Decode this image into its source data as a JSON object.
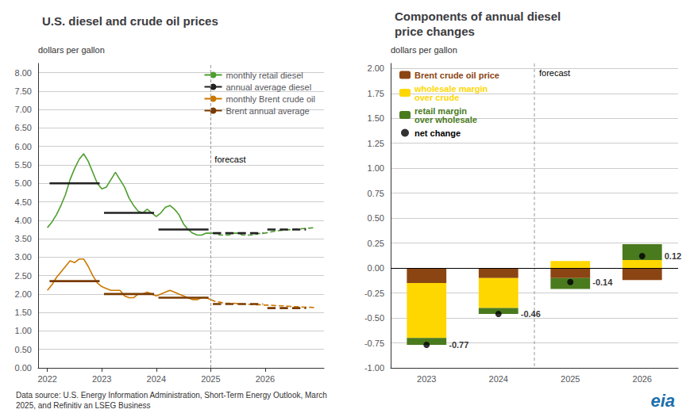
{
  "chart_data": [
    {
      "type": "line",
      "title": "U.S. diesel and crude oil prices",
      "ylabel": "dollars per gallon",
      "x": [
        2022.0,
        2022.0833,
        2022.1667,
        2022.25,
        2022.3334,
        2022.4167,
        2022.5,
        2022.5834,
        2022.6667,
        2022.7501,
        2022.8334,
        2022.9167,
        2023.0001,
        2023.0834,
        2023.1667,
        2023.2501,
        2023.3334,
        2023.4168,
        2023.5001,
        2023.5834,
        2023.6668,
        2023.7501,
        2023.8335,
        2023.9168,
        2024.0001,
        2024.0835,
        2024.1668,
        2024.2502,
        2024.3335,
        2024.4168,
        2024.5002,
        2024.5835,
        2024.6668,
        2024.7502,
        2024.8335,
        2024.9169,
        2025.0002,
        2025.0835,
        2025.1669,
        2025.2502,
        2025.3336,
        2025.4169,
        2025.5002,
        2025.5836,
        2025.6669,
        2025.7503,
        2025.8336,
        2025.9169,
        2026.0003,
        2026.0836,
        2026.1669,
        2026.2503,
        2026.3336,
        2026.417,
        2026.5003,
        2026.5836,
        2026.667,
        2026.7503,
        2026.8337,
        2026.917
      ],
      "xlim": [
        2021.83,
        2027.08
      ],
      "xticks": [
        2022,
        2023,
        2024,
        2025,
        2026
      ],
      "ylim": [
        0.0,
        8.25
      ],
      "yticks": [
        {
          "value": 0.0,
          "label": "0.00"
        },
        {
          "value": 0.5,
          "label": "0.50"
        },
        {
          "value": 1.0,
          "label": "1.00"
        },
        {
          "value": 1.5,
          "label": "1.50"
        },
        {
          "value": 2.0,
          "label": "2.00"
        },
        {
          "value": 2.5,
          "label": "2.50"
        },
        {
          "value": 3.0,
          "label": "3.00"
        },
        {
          "value": 3.5,
          "label": "3.50"
        },
        {
          "value": 4.0,
          "label": "4.00"
        },
        {
          "value": 4.5,
          "label": "4.50"
        },
        {
          "value": 5.0,
          "label": "5.00"
        },
        {
          "value": 5.5,
          "label": "5.50"
        },
        {
          "value": 6.0,
          "label": "6.00"
        },
        {
          "value": 6.5,
          "label": "6.50"
        },
        {
          "value": 7.0,
          "label": "7.00"
        },
        {
          "value": 7.5,
          "label": "7.50"
        },
        {
          "value": 8.0,
          "label": "8.00"
        }
      ],
      "grid": true,
      "legend": "upper right",
      "series": [
        {
          "name": "monthly retail diesel",
          "color": "#4d9e2f",
          "values": [
            3.8,
            3.95,
            4.15,
            4.4,
            4.7,
            5.1,
            5.4,
            5.65,
            5.8,
            5.6,
            5.3,
            5.0,
            4.85,
            4.9,
            5.1,
            5.3,
            5.1,
            4.9,
            4.6,
            4.4,
            4.25,
            4.2,
            4.3,
            4.2,
            4.1,
            4.2,
            4.35,
            4.4,
            4.3,
            4.15,
            3.9,
            3.75,
            3.65,
            3.6,
            3.6,
            3.65,
            3.65,
            3.65,
            3.6,
            3.6,
            3.6,
            3.65,
            3.65,
            3.6,
            3.6,
            3.6,
            3.62,
            3.65,
            3.65,
            3.68,
            3.7,
            3.72,
            3.73,
            3.74,
            3.75,
            3.76,
            3.77,
            3.78,
            3.79,
            3.8
          ]
        },
        {
          "name": "annual average diesel",
          "color": "#222222",
          "segments": [
            {
              "x_start": 2022.04,
              "x_end": 2022.96,
              "y": 5.0,
              "line_style": "solid"
            },
            {
              "x_start": 2023.04,
              "x_end": 2023.96,
              "y": 4.2,
              "line_style": "solid"
            },
            {
              "x_start": 2024.04,
              "x_end": 2024.96,
              "y": 3.75,
              "line_style": "solid"
            },
            {
              "x_start": 2025.04,
              "x_end": 2025.96,
              "y": 3.65,
              "line_style": "dashed"
            },
            {
              "x_start": 2026.04,
              "x_end": 2026.75,
              "y": 3.75,
              "line_style": "dashed"
            }
          ]
        },
        {
          "name": "monthly Brent crude oil",
          "color": "#cc7700",
          "values": [
            2.1,
            2.25,
            2.45,
            2.6,
            2.75,
            2.9,
            2.85,
            2.95,
            2.95,
            2.75,
            2.5,
            2.3,
            2.2,
            2.15,
            2.1,
            2.1,
            2.1,
            1.95,
            1.9,
            1.9,
            2.0,
            2.0,
            2.05,
            2.0,
            1.95,
            2.0,
            2.05,
            2.1,
            2.05,
            2.0,
            1.95,
            1.9,
            1.85,
            1.85,
            1.9,
            1.9,
            1.85,
            1.8,
            1.78,
            1.75,
            1.75,
            1.75,
            1.74,
            1.73,
            1.72,
            1.72,
            1.71,
            1.71,
            1.7,
            1.7,
            1.69,
            1.68,
            1.68,
            1.67,
            1.66,
            1.66,
            1.65,
            1.64,
            1.64,
            1.63
          ]
        },
        {
          "name": "Brent annual average",
          "color": "#7a3b00",
          "segments": [
            {
              "x_start": 2022.04,
              "x_end": 2022.96,
              "y": 2.35,
              "line_style": "solid"
            },
            {
              "x_start": 2023.04,
              "x_end": 2023.96,
              "y": 2.0,
              "line_style": "solid"
            },
            {
              "x_start": 2024.04,
              "x_end": 2024.96,
              "y": 1.9,
              "line_style": "solid"
            },
            {
              "x_start": 2025.04,
              "x_end": 2025.96,
              "y": 1.73,
              "line_style": "dashed"
            },
            {
              "x_start": 2026.04,
              "x_end": 2026.75,
              "y": 1.62,
              "line_style": "dashed"
            }
          ]
        }
      ],
      "annotations": [
        {
          "text": "forecast",
          "x": 2025.0
        }
      ]
    },
    {
      "type": "bar",
      "title": "Components of annual diesel\nprice changes",
      "ylabel": "dollars per gallon",
      "categories": [
        "2023",
        "2024",
        "2025",
        "2026"
      ],
      "ylim": [
        -1.0,
        2.05
      ],
      "yticks": [
        {
          "value": -1.0,
          "label": "-1.00"
        },
        {
          "value": -0.75,
          "label": "-0.75"
        },
        {
          "value": -0.5,
          "label": "-0.50"
        },
        {
          "value": -0.25,
          "label": "-0.25"
        },
        {
          "value": 0.0,
          "label": "0.00"
        },
        {
          "value": 0.25,
          "label": "0.25"
        },
        {
          "value": 0.5,
          "label": "0.50"
        },
        {
          "value": 0.75,
          "label": "0.75"
        },
        {
          "value": 1.0,
          "label": "1.00"
        },
        {
          "value": 1.25,
          "label": "1.25"
        },
        {
          "value": 1.5,
          "label": "1.50"
        },
        {
          "value": 1.75,
          "label": "1.75"
        },
        {
          "value": 2.0,
          "label": "2.00"
        }
      ],
      "stacked": true,
      "grid": true,
      "legend": "upper left",
      "series": [
        {
          "name": "Brent crude oil price",
          "color": "#8B4513",
          "values": [
            -0.15,
            -0.1,
            -0.1,
            -0.12
          ]
        },
        {
          "name": "wholesale margin\nover crude",
          "color": "#FFD700",
          "values": [
            -0.55,
            -0.3,
            0.07,
            0.08
          ]
        },
        {
          "name": "retail margin\nover wholesale",
          "color": "#4a7a1e",
          "values": [
            -0.07,
            -0.06,
            -0.11,
            0.16
          ]
        },
        {
          "name": "net change",
          "type": "scatter",
          "marker": "circle",
          "color": "black",
          "data_labels": true,
          "values": [
            -0.77,
            -0.46,
            -0.14,
            0.12
          ]
        }
      ],
      "annotations": [
        {
          "text": "forecast",
          "between": [
            "2024",
            "2025"
          ]
        }
      ]
    }
  ],
  "footnote": "Data source: U.S. Energy Information Administration, Short-Term Energy Outlook, March\n2025, and Refinitiv an LSEG Business",
  "logo": "eia"
}
